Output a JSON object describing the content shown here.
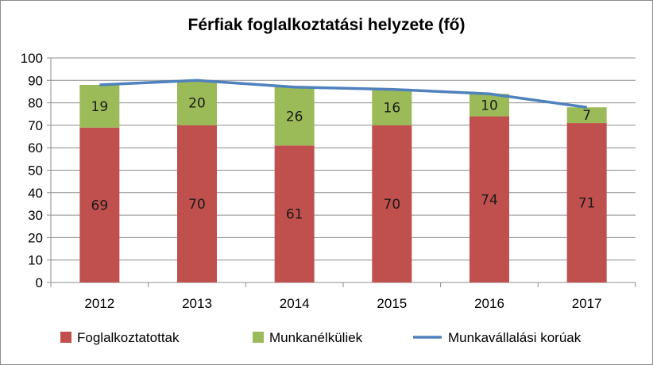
{
  "chart_data": {
    "type": "bar",
    "stacked": true,
    "title": "Férfiak foglalkoztatási helyzete (fő)",
    "categories": [
      "2012",
      "2013",
      "2014",
      "2015",
      "2016",
      "2017"
    ],
    "series": [
      {
        "name": "Foglalkoztatottak",
        "kind": "bar",
        "color": "#c0504d",
        "values": [
          69,
          70,
          61,
          70,
          74,
          71
        ]
      },
      {
        "name": "Munkanélküliek",
        "kind": "bar",
        "color": "#9bbb59",
        "values": [
          19,
          20,
          26,
          16,
          10,
          7
        ]
      },
      {
        "name": "Munkavállalási korúak",
        "kind": "line",
        "color": "#4f81bd",
        "values": [
          88,
          90,
          87,
          86,
          84,
          78
        ]
      }
    ],
    "yticks": [
      "0",
      "10",
      "20",
      "30",
      "40",
      "50",
      "60",
      "70",
      "80",
      "90",
      "100"
    ],
    "ylim": [
      0,
      100
    ],
    "grid": true,
    "legend_position": "bottom",
    "xlabel": "",
    "ylabel": ""
  }
}
